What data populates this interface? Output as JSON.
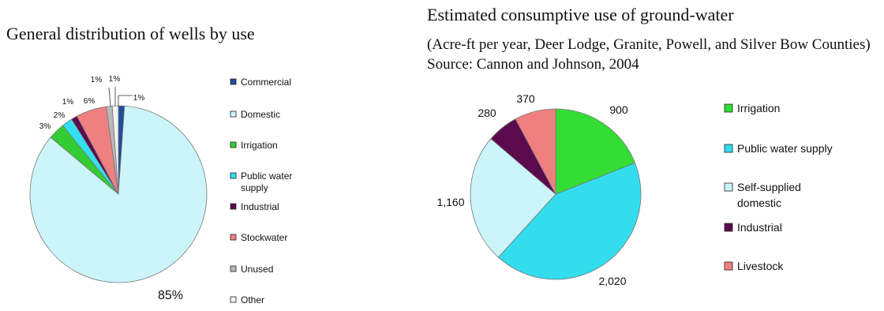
{
  "chart_data": [
    {
      "type": "pie",
      "title": "General distribution of wells by use",
      "unit": "%",
      "slices": [
        {
          "label": "Commercial",
          "value": 1,
          "label_text": "1%",
          "color": "#1f4e9a"
        },
        {
          "label": "Domestic",
          "value": 85,
          "label_text": "85%",
          "color": "#ccf5fa"
        },
        {
          "label": "Irrigation",
          "value": 3,
          "label_text": "3%",
          "color": "#33cc33"
        },
        {
          "label": "Public water supply",
          "value": 2,
          "label_text": "2%",
          "color": "#33e0f0"
        },
        {
          "label": "Industrial",
          "value": 1,
          "label_text": "1%",
          "color": "#5c0a4e"
        },
        {
          "label": "Stockwater",
          "value": 6,
          "label_text": "6%",
          "color": "#f08080"
        },
        {
          "label": "Unused",
          "value": 1,
          "label_text": "1%",
          "color": "#b8b8b8"
        },
        {
          "label": "Other",
          "value": 1,
          "label_text": "1%",
          "color": "#f2f2f2"
        }
      ],
      "legend": {
        "placement": "right",
        "items": [
          {
            "text": "Commercial",
            "color": "#1f4e9a"
          },
          {
            "text": "Domestic",
            "color": "#ccf5fa"
          },
          {
            "text": "Irrigation",
            "color": "#33cc33"
          },
          {
            "text": "Public water\nsupply",
            "color": "#33e0f0"
          },
          {
            "text": "Industrial",
            "color": "#5c0a4e"
          },
          {
            "text": "Stockwater",
            "color": "#f08080"
          },
          {
            "text": "Unused",
            "color": "#b8b8b8"
          },
          {
            "text": "Other",
            "color": "#f2f2f2"
          }
        ]
      }
    },
    {
      "type": "pie",
      "title": "Estimated consumptive use of ground-water",
      "subtitle": "(Acre-ft per year, Deer Lodge, Granite, Powell, and Silver Bow Counties) Source: Cannon and Johnson, 2004",
      "unit": "Acre-ft per year",
      "slices": [
        {
          "label": "Irrigation",
          "value": 900,
          "label_text": "900",
          "color": "#33dd33"
        },
        {
          "label": "Public water supply",
          "value": 2020,
          "label_text": "2,020",
          "color": "#33ddee"
        },
        {
          "label": "Self-supplied domestic",
          "value": 1160,
          "label_text": "1,160",
          "color": "#ccf5fa"
        },
        {
          "label": "Industrial",
          "value": 280,
          "label_text": "280",
          "color": "#5c0a4e"
        },
        {
          "label": "Livestock",
          "value": 370,
          "label_text": "370",
          "color": "#f08080"
        }
      ],
      "legend": {
        "placement": "right",
        "items": [
          {
            "text": "Irrigation",
            "color": "#33dd33"
          },
          {
            "text": "Public water supply",
            "color": "#33ddee"
          },
          {
            "text": "Self-supplied\ndomestic",
            "color": "#ccf5fa"
          },
          {
            "text": "Industrial",
            "color": "#5c0a4e"
          },
          {
            "text": "Livestock",
            "color": "#f08080"
          }
        ]
      }
    }
  ]
}
